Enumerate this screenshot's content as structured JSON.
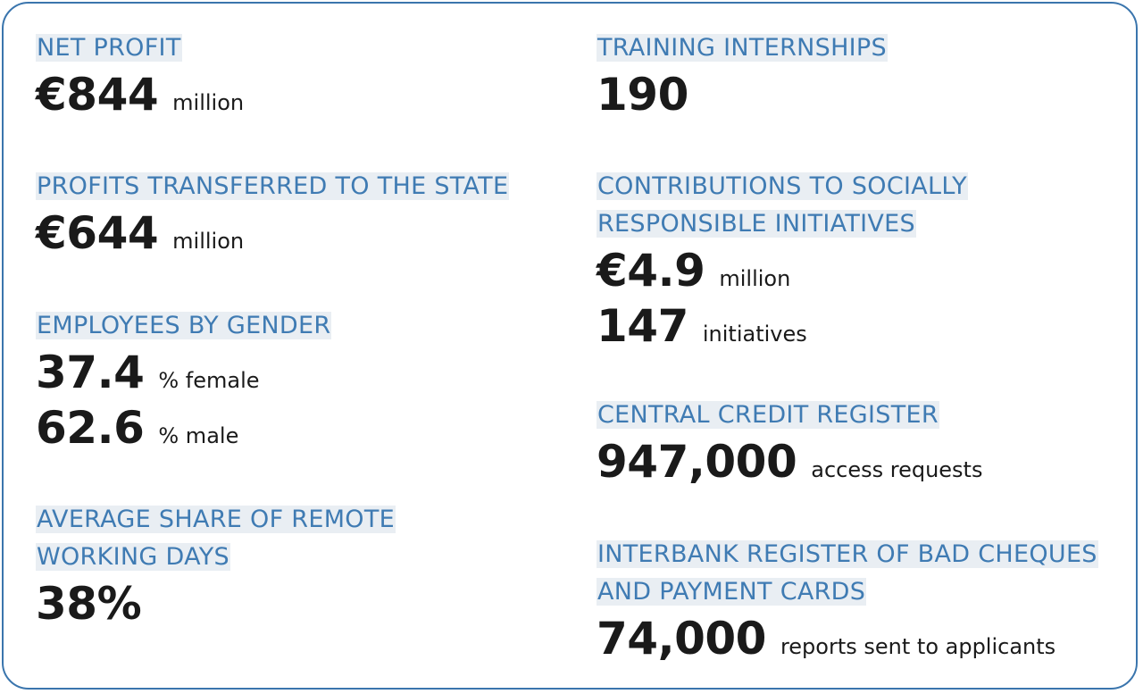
{
  "left": {
    "net_profit": {
      "heading": "NET PROFIT",
      "value": "€844",
      "unit": "million"
    },
    "profits_state": {
      "heading": "PROFITS TRANSFERRED TO THE STATE",
      "value": "€644",
      "unit": "million"
    },
    "gender": {
      "heading": "EMPLOYEES BY GENDER",
      "female_value": "37.4",
      "female_unit": "% female",
      "male_value": "62.6",
      "male_unit": "% male"
    },
    "remote": {
      "heading_line1": "AVERAGE SHARE OF REMOTE",
      "heading_line2": "WORKING DAYS",
      "value": "38%"
    }
  },
  "right": {
    "internships": {
      "heading": "TRAINING INTERNSHIPS",
      "value": "190"
    },
    "csr": {
      "heading_line1": "CONTRIBUTIONS TO SOCIALLY",
      "heading_line2": "RESPONSIBLE INITIATIVES",
      "amount_value": "€4.9",
      "amount_unit": "million",
      "count_value": "147",
      "count_unit": "initiatives"
    },
    "credit": {
      "heading": "CENTRAL CREDIT REGISTER",
      "value": "947,000",
      "unit": "access requests"
    },
    "cheques": {
      "heading_line1": "INTERBANK REGISTER OF BAD CHEQUES",
      "heading_line2": "AND PAYMENT CARDS",
      "value": "74,000",
      "unit": "reports sent to applicants"
    }
  },
  "colors": {
    "border": "#3a75ad",
    "heading": "#3f7bb3",
    "heading_bg": "#e9eef3",
    "text": "#1a1a1a"
  }
}
